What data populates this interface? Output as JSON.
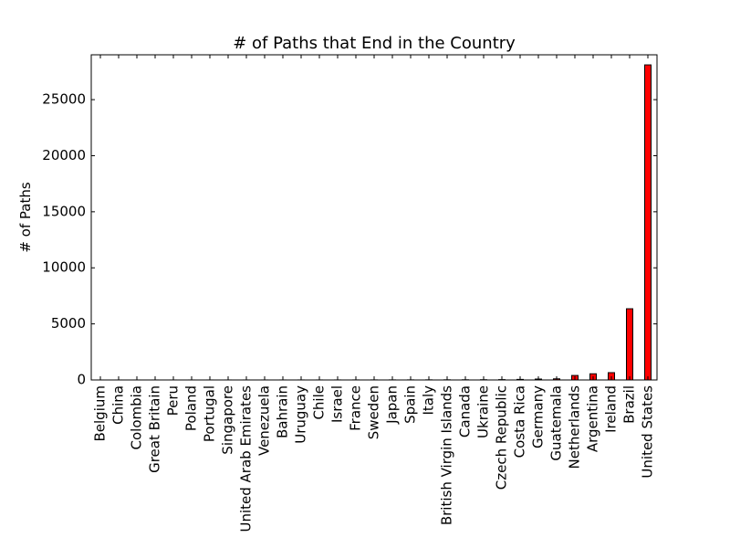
{
  "chart_data": {
    "type": "bar",
    "title": "# of Paths that End in the Country",
    "xlabel": "",
    "ylabel": "# of Paths",
    "ylim": [
      0,
      29000
    ],
    "yticks": [
      0,
      5000,
      10000,
      15000,
      20000,
      25000
    ],
    "categories": [
      "Belgium",
      "China",
      "Colombia",
      "Great Britain",
      "Peru",
      "Poland",
      "Portugal",
      "Singapore",
      "United Arab Emirates",
      "Venezuela",
      "Bahrain",
      "Uruguay",
      "Chile",
      "Israel",
      "France",
      "Sweden",
      "Japan",
      "Spain",
      "Italy",
      "British Virgin Islands",
      "Canada",
      "Ukraine",
      "Czech Republic",
      "Costa Rica",
      "Germany",
      "Guatemala",
      "Netherlands",
      "Argentina",
      "Ireland",
      "Brazil",
      "United States"
    ],
    "values": [
      1,
      1,
      1,
      2,
      2,
      2,
      2,
      2,
      3,
      3,
      3,
      4,
      4,
      5,
      6,
      8,
      9,
      10,
      12,
      15,
      18,
      22,
      30,
      50,
      80,
      100,
      400,
      550,
      650,
      6350,
      28100
    ],
    "bar_color": "#ff0000",
    "edge_color": "#000000",
    "grid": false,
    "legend": "none"
  }
}
